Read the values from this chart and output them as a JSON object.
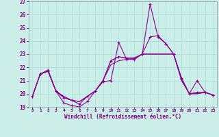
{
  "xlabel": "Windchill (Refroidissement éolien,°C)",
  "xlim": [
    -0.5,
    23.5
  ],
  "ylim": [
    19,
    27
  ],
  "yticks": [
    19,
    20,
    21,
    22,
    23,
    24,
    25,
    26,
    27
  ],
  "xticks": [
    0,
    1,
    2,
    3,
    4,
    5,
    6,
    7,
    8,
    9,
    10,
    11,
    12,
    13,
    14,
    15,
    16,
    17,
    18,
    19,
    20,
    21,
    22,
    23
  ],
  "background_color": "#cceee8",
  "line_color": "#8b008b",
  "grid_color": "#aaddda",
  "line1_y": [
    19.8,
    21.5,
    21.7,
    20.2,
    19.8,
    19.5,
    19.4,
    19.8,
    20.2,
    21.0,
    22.5,
    22.8,
    22.7,
    22.7,
    23.0,
    23.0,
    23.0,
    23.0,
    23.0,
    21.1,
    20.0,
    20.0,
    20.1,
    19.9
  ],
  "line2_y": [
    19.8,
    21.5,
    21.8,
    20.2,
    19.3,
    19.1,
    19.0,
    19.4,
    20.2,
    20.9,
    21.0,
    23.9,
    22.6,
    22.6,
    23.0,
    26.8,
    24.3,
    23.8,
    23.0,
    21.2,
    20.0,
    21.0,
    20.1,
    19.9
  ],
  "line3_y": [
    19.8,
    21.5,
    21.7,
    20.2,
    19.7,
    19.5,
    19.2,
    19.8,
    20.2,
    21.0,
    22.5,
    22.8,
    22.7,
    22.7,
    23.0,
    24.3,
    24.4,
    23.8,
    23.0,
    21.1,
    20.0,
    20.1,
    20.1,
    19.9
  ],
  "line4_y": [
    19.8,
    21.5,
    21.7,
    20.2,
    19.7,
    19.5,
    19.4,
    19.8,
    20.2,
    21.0,
    22.2,
    22.5,
    22.6,
    22.7,
    23.0,
    23.0,
    23.0,
    23.0,
    23.0,
    21.0,
    20.0,
    20.0,
    20.1,
    19.9
  ]
}
